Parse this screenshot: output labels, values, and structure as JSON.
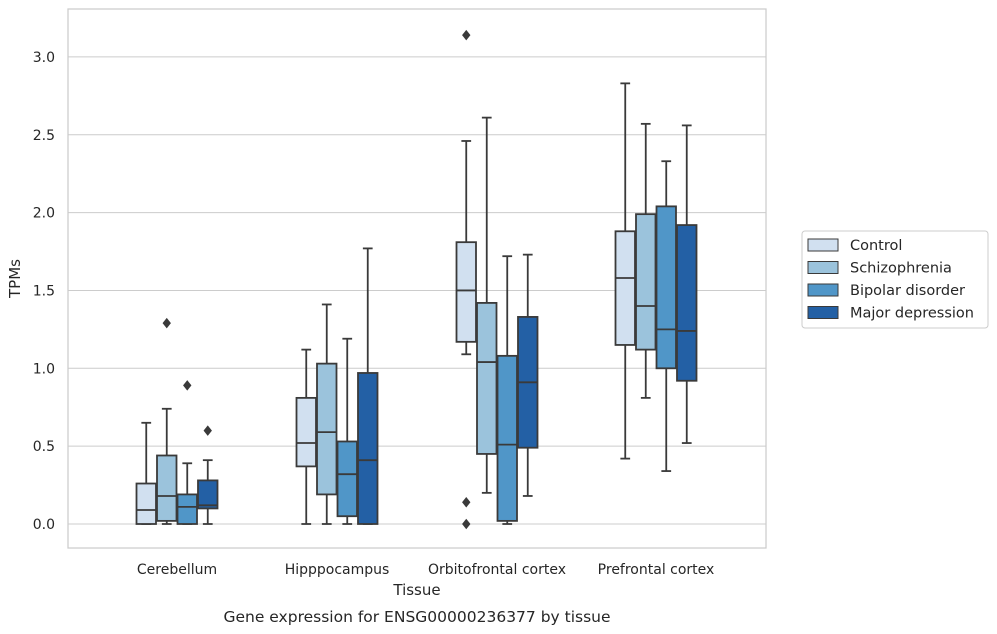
{
  "chart_data": {
    "type": "box",
    "caption": "Gene expression for ENSG00000236377 by tissue",
    "xlabel": "Tissue",
    "ylabel": "TPMs",
    "ylim": [
      -0.15,
      3.3
    ],
    "yticks": [
      0.0,
      0.5,
      1.0,
      1.5,
      2.0,
      2.5,
      3.0
    ],
    "ytick_labels": [
      "0.0",
      "0.5",
      "1.0",
      "1.5",
      "2.0",
      "2.5",
      "3.0"
    ],
    "grid": "horizontal",
    "legend_position": "outside-right",
    "categories": [
      "Cerebellum",
      "Hipppocampus",
      "Orbitofrontal cortex",
      "Prefrontal cortex"
    ],
    "series": [
      {
        "name": "Control",
        "color": "#d1e0f0",
        "boxes": [
          {
            "whislo": 0.0,
            "q1": 0.0,
            "med": 0.09,
            "q3": 0.26,
            "whishi": 0.65,
            "fliers": []
          },
          {
            "whislo": 0.0,
            "q1": 0.37,
            "med": 0.52,
            "q3": 0.81,
            "whishi": 1.12,
            "fliers": []
          },
          {
            "whislo": 1.09,
            "q1": 1.17,
            "med": 1.5,
            "q3": 1.81,
            "whishi": 2.46,
            "fliers": [
              0.14,
              0.0,
              3.14
            ]
          },
          {
            "whislo": 0.42,
            "q1": 1.15,
            "med": 1.58,
            "q3": 1.88,
            "whishi": 2.83,
            "fliers": []
          }
        ]
      },
      {
        "name": "Schizophrenia",
        "color": "#9bc3dc",
        "boxes": [
          {
            "whislo": 0.0,
            "q1": 0.02,
            "med": 0.18,
            "q3": 0.44,
            "whishi": 0.74,
            "fliers": [
              1.29
            ]
          },
          {
            "whislo": 0.0,
            "q1": 0.19,
            "med": 0.59,
            "q3": 1.03,
            "whishi": 1.41,
            "fliers": []
          },
          {
            "whislo": 0.2,
            "q1": 0.45,
            "med": 1.04,
            "q3": 1.42,
            "whishi": 2.61,
            "fliers": []
          },
          {
            "whislo": 0.81,
            "q1": 1.12,
            "med": 1.4,
            "q3": 1.99,
            "whishi": 2.57,
            "fliers": []
          }
        ]
      },
      {
        "name": "Bipolar disorder",
        "color": "#5096c8",
        "boxes": [
          {
            "whislo": 0.0,
            "q1": 0.0,
            "med": 0.11,
            "q3": 0.19,
            "whishi": 0.39,
            "fliers": [
              0.89
            ]
          },
          {
            "whislo": 0.0,
            "q1": 0.05,
            "med": 0.32,
            "q3": 0.53,
            "whishi": 1.19,
            "fliers": []
          },
          {
            "whislo": 0.0,
            "q1": 0.02,
            "med": 0.51,
            "q3": 1.08,
            "whishi": 1.72,
            "fliers": []
          },
          {
            "whislo": 0.34,
            "q1": 1.0,
            "med": 1.25,
            "q3": 2.04,
            "whishi": 2.33,
            "fliers": []
          }
        ]
      },
      {
        "name": "Major depression",
        "color": "#2360a5",
        "boxes": [
          {
            "whislo": 0.0,
            "q1": 0.1,
            "med": 0.12,
            "q3": 0.28,
            "whishi": 0.41,
            "fliers": [
              0.6
            ]
          },
          {
            "whislo": 0.0,
            "q1": 0.0,
            "med": 0.41,
            "q3": 0.97,
            "whishi": 1.77,
            "fliers": []
          },
          {
            "whislo": 0.18,
            "q1": 0.49,
            "med": 0.91,
            "q3": 1.33,
            "whishi": 1.73,
            "fliers": []
          },
          {
            "whislo": 0.52,
            "q1": 0.92,
            "med": 1.24,
            "q3": 1.92,
            "whishi": 2.56,
            "fliers": []
          }
        ]
      }
    ]
  }
}
